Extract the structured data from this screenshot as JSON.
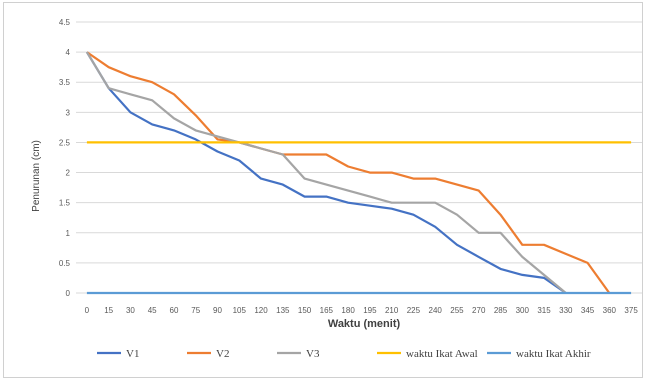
{
  "chart_data": {
    "type": "line",
    "xlabel": "Waktu (menit)",
    "ylabel": "Penurunan (cm)",
    "ylim": [
      0,
      4.5
    ],
    "yticks": [
      "0",
      "0.5",
      "1",
      "1.5",
      "2",
      "2.5",
      "3",
      "3.5",
      "4",
      "4.5"
    ],
    "categories": [
      "0",
      "15",
      "30",
      "45",
      "60",
      "75",
      "90",
      "105",
      "120",
      "135",
      "150",
      "165",
      "180",
      "195",
      "210",
      "225",
      "240",
      "255",
      "270",
      "285",
      "300",
      "315",
      "330",
      "345",
      "360",
      "375"
    ],
    "grid": "horizontal",
    "legend_position": "bottom",
    "series": [
      {
        "name": "V1",
        "color": "#4472C4",
        "values": [
          4.0,
          3.4,
          3.0,
          2.8,
          2.7,
          2.55,
          2.35,
          2.2,
          1.9,
          1.8,
          1.6,
          1.6,
          1.5,
          1.45,
          1.4,
          1.3,
          1.1,
          0.8,
          0.6,
          0.4,
          0.3,
          0.25,
          0.0,
          null,
          null,
          null
        ]
      },
      {
        "name": "V2",
        "color": "#ED7D31",
        "values": [
          4.0,
          3.75,
          3.6,
          3.5,
          3.3,
          2.95,
          2.55,
          2.5,
          2.4,
          2.3,
          2.3,
          2.3,
          2.1,
          2.0,
          2.0,
          1.9,
          1.9,
          1.8,
          1.7,
          1.3,
          0.8,
          0.8,
          0.65,
          0.5,
          0.0,
          null
        ]
      },
      {
        "name": "V3",
        "color": "#A5A5A5",
        "values": [
          4.0,
          3.4,
          3.3,
          3.2,
          2.9,
          2.7,
          2.6,
          2.5,
          2.4,
          2.3,
          1.9,
          1.8,
          1.7,
          1.6,
          1.5,
          1.5,
          1.5,
          1.3,
          1.0,
          1.0,
          0.6,
          0.3,
          0.0,
          null,
          null,
          null
        ]
      },
      {
        "name": "waktu Ikat Awal",
        "color": "#FFC000",
        "values": [
          2.5,
          2.5,
          2.5,
          2.5,
          2.5,
          2.5,
          2.5,
          2.5,
          2.5,
          2.5,
          2.5,
          2.5,
          2.5,
          2.5,
          2.5,
          2.5,
          2.5,
          2.5,
          2.5,
          2.5,
          2.5,
          2.5,
          2.5,
          2.5,
          2.5,
          2.5
        ]
      },
      {
        "name": "waktu Ikat Akhir",
        "color": "#5B9BD5",
        "values": [
          0,
          0,
          0,
          0,
          0,
          0,
          0,
          0,
          0,
          0,
          0,
          0,
          0,
          0,
          0,
          0,
          0,
          0,
          0,
          0,
          0,
          0,
          0,
          0,
          0,
          0
        ]
      }
    ]
  }
}
